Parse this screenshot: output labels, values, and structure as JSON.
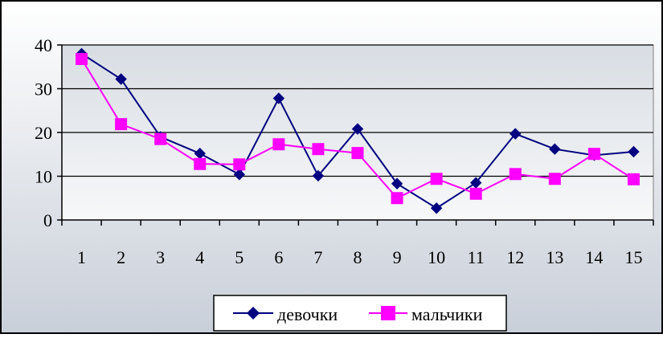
{
  "chart_data": {
    "type": "line",
    "title": "",
    "xlabel": "",
    "ylabel": "",
    "categories": [
      "1",
      "2",
      "3",
      "4",
      "5",
      "6",
      "7",
      "8",
      "9",
      "10",
      "11",
      "12",
      "13",
      "14",
      "15"
    ],
    "ylim": [
      0,
      40
    ],
    "yticks": [
      "0",
      "10",
      "20",
      "30",
      "40"
    ],
    "grid": true,
    "legend_position": "bottom",
    "series": [
      {
        "name": "девочки",
        "color": "#000080",
        "marker": "diamond",
        "values": [
          38,
          32.2,
          19,
          15.2,
          10.4,
          27.8,
          10.1,
          20.8,
          8.3,
          2.7,
          8.5,
          19.7,
          16.2,
          14.8,
          15.6
        ]
      },
      {
        "name": "мальчики",
        "color": "#FF00FF",
        "marker": "square",
        "values": [
          36.8,
          21.9,
          18.5,
          12.8,
          12.7,
          17.3,
          16.2,
          15.3,
          5,
          9.4,
          6,
          10.5,
          9.4,
          15.1,
          9.3
        ]
      }
    ]
  }
}
